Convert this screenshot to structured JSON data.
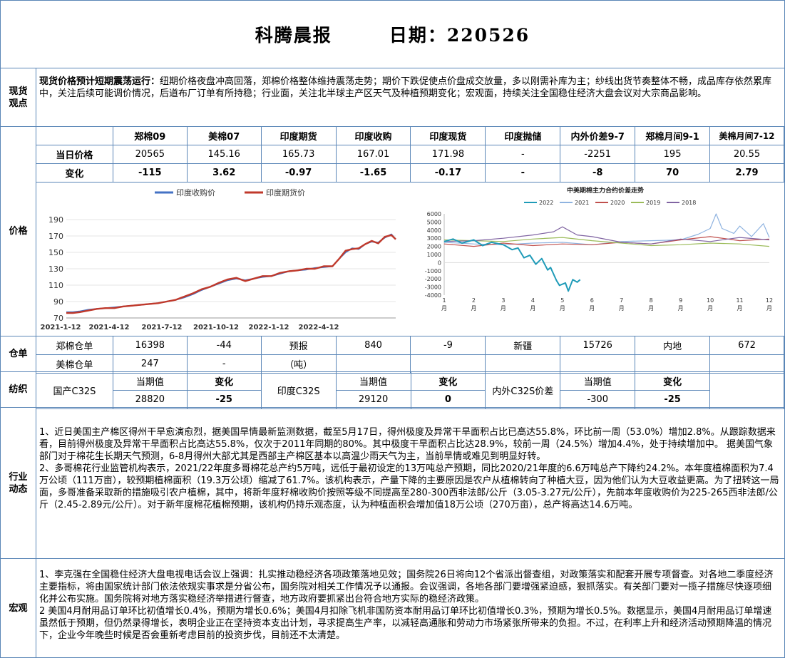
{
  "header": {
    "title": "科腾晨报",
    "date_label": "日期：220526"
  },
  "spot": {
    "label": "现货\n观点",
    "headline": "现货价格预计短期震荡运行：",
    "text": "纽期价格夜盘冲高回落，郑棉价格整体维持震荡走势；期价下跌促使点价盘成交放量，多以刚需补库为主；纱线出货节奏整体不畅，成品库存依然累库中，关注后续可能调价情况，后道布厂订单有所持稳；行业面，关注北半球主产区天气及种植预期变化；宏观面，持续关注全国稳住经济大盘会议对大宗商品影响。"
  },
  "price": {
    "label": "价格",
    "headers": [
      "郑棉09",
      "美棉07",
      "印度期货",
      "印度收购",
      "印度现货",
      "印度抛储",
      "内外价差9-7",
      "郑棉月间9-1",
      "美棉月间7-12"
    ],
    "today_label": "当日价格",
    "today": [
      "20565",
      "145.16",
      "165.73",
      "167.01",
      "171.98",
      "-",
      "-2251",
      "195",
      "20.55"
    ],
    "change_label": "变化",
    "change": [
      "-115",
      "3.62",
      "-0.97",
      "-1.65",
      "-0.17",
      "-",
      "-8",
      "70",
      "2.79"
    ]
  },
  "chart_data": [
    {
      "type": "line",
      "title": "",
      "x_ticks": [
        "2021-1-12",
        "2021-4-12",
        "2021-7-12",
        "2021-10-12",
        "2022-1-12",
        "2022-4-12"
      ],
      "ylim": [
        70,
        190
      ],
      "y_ticks": [
        70,
        90,
        110,
        130,
        150,
        170,
        190
      ],
      "legend_position": "top",
      "series": [
        {
          "name": "印度收购价",
          "color": "#4472c4",
          "points": [
            [
              0,
              77
            ],
            [
              6,
              77
            ],
            [
              12,
              78
            ],
            [
              20,
              80
            ],
            [
              28,
              81
            ],
            [
              36,
              82
            ],
            [
              44,
              83
            ],
            [
              52,
              84
            ],
            [
              60,
              85
            ],
            [
              68,
              86
            ],
            [
              76,
              87
            ],
            [
              84,
              88
            ],
            [
              92,
              90
            ],
            [
              100,
              92
            ],
            [
              108,
              95
            ],
            [
              116,
              99
            ],
            [
              124,
              104
            ],
            [
              132,
              108
            ],
            [
              140,
              112
            ],
            [
              148,
              116
            ],
            [
              156,
              118
            ],
            [
              164,
              116
            ],
            [
              172,
              118
            ],
            [
              180,
              120
            ],
            [
              188,
              121
            ],
            [
              196,
              124
            ],
            [
              204,
              127
            ],
            [
              212,
              128
            ],
            [
              220,
              129
            ],
            [
              228,
              131
            ],
            [
              236,
              132
            ],
            [
              244,
              133
            ],
            [
              250,
              142
            ],
            [
              256,
              150
            ],
            [
              262,
              155
            ],
            [
              268,
              154
            ],
            [
              274,
              160
            ],
            [
              280,
              163
            ],
            [
              286,
              162
            ],
            [
              292,
              168
            ],
            [
              298,
              172
            ],
            [
              302,
              166
            ]
          ]
        },
        {
          "name": "印度期货价",
          "color": "#c0392b",
          "points": [
            [
              0,
              76
            ],
            [
              6,
              76
            ],
            [
              12,
              77
            ],
            [
              20,
              79
            ],
            [
              28,
              81
            ],
            [
              36,
              82
            ],
            [
              44,
              82
            ],
            [
              52,
              84
            ],
            [
              60,
              85
            ],
            [
              68,
              86
            ],
            [
              76,
              87
            ],
            [
              84,
              88
            ],
            [
              92,
              90
            ],
            [
              100,
              92
            ],
            [
              108,
              96
            ],
            [
              116,
              100
            ],
            [
              124,
              105
            ],
            [
              132,
              108
            ],
            [
              140,
              113
            ],
            [
              148,
              117
            ],
            [
              156,
              119
            ],
            [
              164,
              115
            ],
            [
              172,
              118
            ],
            [
              180,
              121
            ],
            [
              188,
              121
            ],
            [
              196,
              125
            ],
            [
              204,
              127
            ],
            [
              212,
              128
            ],
            [
              220,
              130
            ],
            [
              228,
              130
            ],
            [
              236,
              133
            ],
            [
              244,
              133
            ],
            [
              250,
              142
            ],
            [
              256,
              152
            ],
            [
              262,
              154
            ],
            [
              268,
              155
            ],
            [
              274,
              160
            ],
            [
              280,
              164
            ],
            [
              286,
              161
            ],
            [
              292,
              169
            ],
            [
              298,
              171
            ],
            [
              302,
              166
            ]
          ]
        }
      ]
    },
    {
      "type": "line",
      "title": "中美期棉主力合约价差走势",
      "x_ticks": [
        "1\n月",
        "2\n月",
        "3\n月",
        "4\n月",
        "5\n月",
        "6\n月",
        "7\n月",
        "8\n月",
        "9\n月",
        "10\n月",
        "11\n月",
        "12\n月"
      ],
      "ylim": [
        -4000,
        6000
      ],
      "y_ticks": [
        -4000,
        -3000,
        -2000,
        -1000,
        0,
        1000,
        2000,
        3000,
        4000,
        5000,
        6000
      ],
      "legend_position": "top",
      "series": [
        {
          "name": "2022",
          "color": "#1f9bb8",
          "points": [
            [
              1,
              2600
            ],
            [
              1.3,
              2900
            ],
            [
              1.6,
              2400
            ],
            [
              2,
              2800
            ],
            [
              2.3,
              2100
            ],
            [
              2.6,
              2500
            ],
            [
              3,
              2200
            ],
            [
              3.3,
              1600
            ],
            [
              3.5,
              1800
            ],
            [
              3.7,
              600
            ],
            [
              3.9,
              900
            ],
            [
              4.1,
              -200
            ],
            [
              4.3,
              500
            ],
            [
              4.5,
              -900
            ],
            [
              4.6,
              -600
            ],
            [
              4.8,
              -2200
            ],
            [
              4.9,
              -2800
            ],
            [
              5.1,
              -2500
            ],
            [
              5.2,
              -3500
            ],
            [
              5.35,
              -2100
            ],
            [
              5.5,
              -2400
            ],
            [
              5.6,
              -2100
            ]
          ]
        },
        {
          "name": "2021",
          "color": "#8fb3e0",
          "points": [
            [
              1,
              2500
            ],
            [
              2,
              2300
            ],
            [
              3,
              2200
            ],
            [
              4,
              2400
            ],
            [
              5,
              2500
            ],
            [
              6,
              2200
            ],
            [
              7,
              2600
            ],
            [
              8,
              2700
            ],
            [
              9,
              2800
            ],
            [
              9.6,
              3500
            ],
            [
              10,
              4200
            ],
            [
              10.2,
              6000
            ],
            [
              10.4,
              4200
            ],
            [
              10.8,
              3600
            ],
            [
              11,
              4500
            ],
            [
              11.4,
              3200
            ],
            [
              11.8,
              4800
            ],
            [
              12,
              3100
            ]
          ]
        },
        {
          "name": "2020",
          "color": "#c0504d",
          "points": [
            [
              1,
              2300
            ],
            [
              2,
              2000
            ],
            [
              3,
              2400
            ],
            [
              4,
              2100
            ],
            [
              5,
              2300
            ],
            [
              6,
              2200
            ],
            [
              7,
              2500
            ],
            [
              8,
              2300
            ],
            [
              9,
              2800
            ],
            [
              10,
              3200
            ],
            [
              11,
              2700
            ],
            [
              12,
              2900
            ]
          ]
        },
        {
          "name": "2019",
          "color": "#9bbb59",
          "points": [
            [
              1,
              2800
            ],
            [
              2,
              2700
            ],
            [
              3,
              2600
            ],
            [
              4,
              2900
            ],
            [
              5,
              3100
            ],
            [
              6,
              2700
            ],
            [
              7,
              2400
            ],
            [
              8,
              2100
            ],
            [
              9,
              2200
            ],
            [
              10,
              2400
            ],
            [
              11,
              2300
            ],
            [
              12,
              2000
            ]
          ]
        },
        {
          "name": "2018",
          "color": "#8064a2",
          "points": [
            [
              1,
              2600
            ],
            [
              2,
              2700
            ],
            [
              3,
              3000
            ],
            [
              4,
              3400
            ],
            [
              4.7,
              3800
            ],
            [
              5,
              4400
            ],
            [
              5.5,
              3400
            ],
            [
              6,
              3200
            ],
            [
              7,
              2500
            ],
            [
              8,
              2300
            ],
            [
              9,
              2900
            ],
            [
              10,
              2600
            ],
            [
              11,
              3100
            ],
            [
              12,
              2800
            ]
          ]
        }
      ]
    }
  ],
  "warehouse": {
    "label": "仓单",
    "row1": [
      "郑棉仓单",
      "16398",
      "-44",
      "预报",
      "840",
      "-9",
      "新疆",
      "15726",
      "内地",
      "672"
    ],
    "row2": [
      "美棉仓单",
      "247",
      "-",
      "（吨）"
    ]
  },
  "yarn": {
    "label": "纺织",
    "h_current": "当期值",
    "h_change": "变化",
    "domestic": "国产C32S",
    "domestic_val": "28820",
    "domestic_chg": "-25",
    "india": "印度C32S",
    "india_val": "29120",
    "india_chg": "0",
    "spread": "内外C32S价差",
    "spread_val": "-300",
    "spread_chg": "-25"
  },
  "industry": {
    "label": "行业\n动态",
    "p1": "1、近日美国主产棉区得州干旱愈演愈烈，据美国旱情最新监测数据，截至5月17日，得州极度及异常干旱面积占比已高达55.8%，环比前一周（53.0%）增加2.8%。从跟踪数据来看，目前得州极度及异常干旱面积占比高达55.8%，仅次于2011年同期的80%。其中极度干旱面积占比达28.9%，较前一周（24.5%）增加4.4%，处于持续增加中。 据美国气象部门对于棉花生长期天气预测，6-8月得州大部尤其是西部主产棉区基本以高温少雨天气为主，当前旱情或难见到明显好转。",
    "p2": "2、多哥棉花行业监管机构表示，2021/22年度多哥棉花总产约5万吨，远低于最初设定的13万吨总产预期，同比2020/21年度的6.6万吨总产下降约24.2%。本年度植棉面积为7.4万公顷（111万亩），较预期植棉面积（19.3万公顷）缩减了61.7%。该机构表示，产量下降的主要原因是农户从植棉转向了种植大豆，因为他们认为大豆收益更高。为了扭转这一局面，多哥准备采取新的措施吸引农户植棉，其中，将新年度籽棉收购价按照等级不同提高至280-300西非法郎/公斤（3.05-3.27元/公斤），先前本年度收购价为225-265西非法郎/公斤（2.45-2.89元/公斤）。对于新年度棉花植棉预期，该机构仍持乐观态度，认为种植面积会增加值18万公顷（270万亩），总产将高达14.6万吨。"
  },
  "macro": {
    "label": "宏观",
    "p1": "1、李克强在全国稳住经济大盘电视电话会议上强调：扎实推动稳经济各项政策落地见效；国务院26日将向12个省派出督查组，对政策落实和配套开展专项督查。对各地二季度经济主要指标，将由国家统计部门依法依规实事求是分省公布，国务院对相关工作情况予以通报。会议强调，各地各部门要增强紧迫感，狠抓落实。有关部门要对一揽子措施尽快逐项细化并公布实施。国务院将对地方落实稳经济举措进行督查，地方政府要抓紧出台符合地方实际的稳经济政策。",
    "p2": "2 美国4月耐用品订单环比初值增长0.4%，预期为增长0.6%；美国4月扣除飞机非国防资本耐用品订单环比初值增长0.3%，预期为增长0.5%。数据显示，美国4月耐用品订单增速虽然低于预期，但仍然录得增长，表明企业正在坚持资本支出计划，寻求提高生产率，以减轻高通胀和劳动力市场紧张所带来的负担。不过，在利率上升和经济活动预期降温的情况下，企业今年晚些时候是否会重新考虑目前的投资步伐，目前还不太清楚。"
  }
}
